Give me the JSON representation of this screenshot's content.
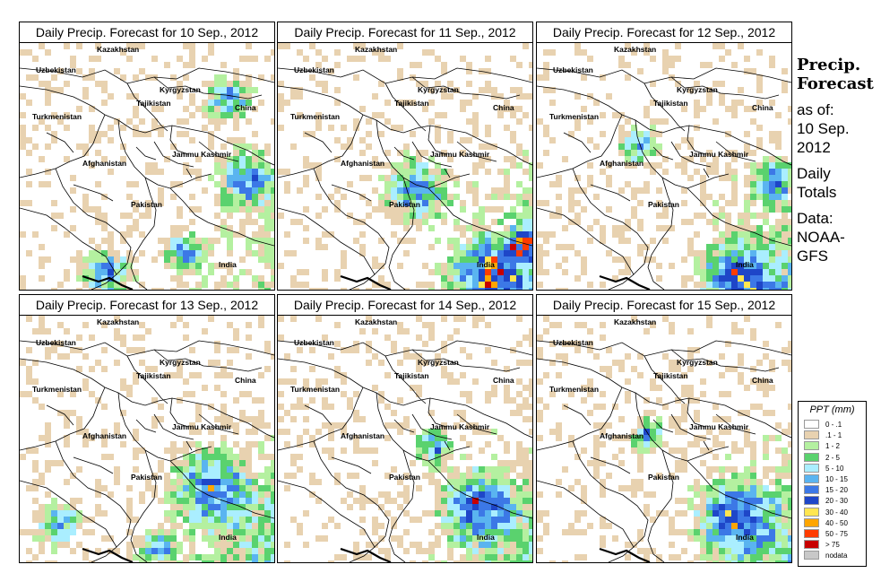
{
  "panels": [
    {
      "title": "Daily Precip. Forecast for  10 Sep., 2012",
      "day": 10
    },
    {
      "title": "Daily Precip. Forecast for  11 Sep., 2012",
      "day": 11
    },
    {
      "title": "Daily Precip. Forecast for  12 Sep., 2012",
      "day": 12
    },
    {
      "title": "Daily Precip. Forecast for  13 Sep., 2012",
      "day": 13
    },
    {
      "title": "Daily Precip. Forecast for  14 Sep., 2012",
      "day": 14
    },
    {
      "title": "Daily Precip. Forecast for  15 Sep., 2012",
      "day": 15
    }
  ],
  "map_labels": {
    "kazakhstan": "Kazakhstan",
    "uzbekistan": "Uzbekistan",
    "kyrgyzstan": "Kyrgyzstan",
    "tajikistan": "Tajikistan",
    "china": "China",
    "turkmenistan": "Turkmenistan",
    "afghanistan": "Afghanistan",
    "jammu_kashmir": "Jammu Kashmir",
    "pakistan": "Pakistan",
    "india": "India"
  },
  "side_info": {
    "title_line1": "Precip.",
    "title_line2": "Forecast",
    "asof_line1": "as of:",
    "asof_line2": "10 Sep.",
    "asof_line3": "2012",
    "daily_line1": "Daily",
    "daily_line2": "Totals",
    "data_line1": "Data:",
    "data_line2": "NOAA-",
    "data_line3": "GFS"
  },
  "legend": {
    "title": "PPT (mm)",
    "items": [
      {
        "label": "0 - .1",
        "color": "#ffffff"
      },
      {
        "label": ".1 - 1",
        "color": "#e8d2b0"
      },
      {
        "label": "1 - 2",
        "color": "#b4f0a0"
      },
      {
        "label": "2 - 5",
        "color": "#5ad26e"
      },
      {
        "label": "5 - 10",
        "color": "#aaeeff"
      },
      {
        "label": "10 - 15",
        "color": "#5ab4f0"
      },
      {
        "label": "15 - 20",
        "color": "#3c78e6"
      },
      {
        "label": "20 - 30",
        "color": "#1e46c8"
      },
      {
        "label": "30 - 40",
        "color": "#ffe650"
      },
      {
        "label": "40 - 50",
        "color": "#ffa500"
      },
      {
        "label": "50 - 75",
        "color": "#ff3c00"
      },
      {
        "label": "> 75",
        "color": "#c80000"
      },
      {
        "label": "nodata",
        "color": "#c8c8c8"
      }
    ]
  }
}
